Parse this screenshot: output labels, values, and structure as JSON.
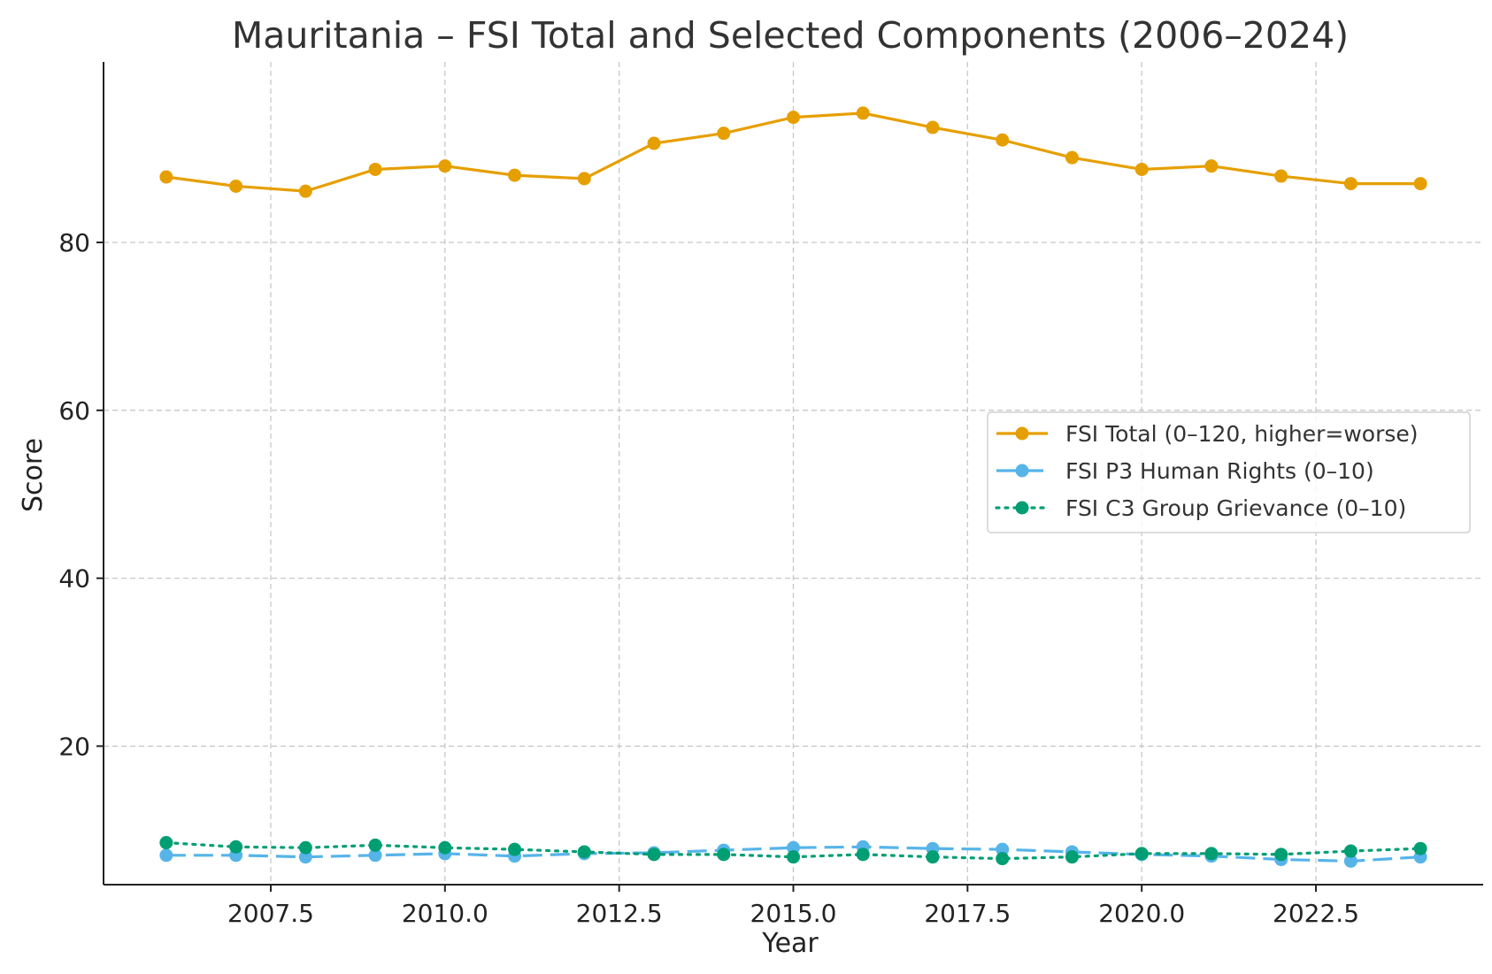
{
  "chart_data": {
    "type": "line",
    "title": "Mauritania – FSI Total and Selected Components (2006–2024)",
    "xlabel": "Year",
    "ylabel": "Score",
    "xlim": [
      2005.1,
      2024.9
    ],
    "ylim": [
      3.5,
      101.5
    ],
    "xticks": [
      2007.5,
      2010.0,
      2012.5,
      2015.0,
      2017.5,
      2020.0,
      2022.5
    ],
    "xtick_labels": [
      "2007.5",
      "2010.0",
      "2012.5",
      "2015.0",
      "2017.5",
      "2020.0",
      "2022.5"
    ],
    "yticks": [
      20,
      40,
      60,
      80
    ],
    "ytick_labels": [
      "20",
      "40",
      "60",
      "80"
    ],
    "grid": true,
    "legend_position": "center-right",
    "x": [
      2006,
      2007,
      2008,
      2009,
      2010,
      2011,
      2012,
      2013,
      2014,
      2015,
      2016,
      2017,
      2018,
      2019,
      2020,
      2021,
      2022,
      2023,
      2024
    ],
    "series": [
      {
        "name": "FSI Total (0–120, higher=worse)",
        "color": "#E69F00",
        "line_style": "solid",
        "values": [
          87.8,
          86.7,
          86.1,
          88.7,
          89.1,
          88.0,
          87.6,
          91.8,
          93.0,
          94.9,
          95.4,
          93.7,
          92.2,
          90.1,
          88.7,
          89.1,
          87.9,
          87.0,
          87.0
        ]
      },
      {
        "name": "FSI P3 Human Rights (0–10)",
        "color": "#56B4E9",
        "line_style": "dashed",
        "values": [
          7.0,
          7.0,
          6.8,
          7.0,
          7.2,
          6.9,
          7.2,
          7.3,
          7.6,
          7.9,
          8.0,
          7.8,
          7.7,
          7.4,
          7.1,
          6.9,
          6.5,
          6.3,
          6.8
        ]
      },
      {
        "name": "FSI C3 Group Grievance (0–10)",
        "color": "#009E73",
        "line_style": "dotted",
        "values": [
          8.5,
          8.0,
          7.9,
          8.2,
          7.9,
          7.7,
          7.4,
          7.1,
          7.1,
          6.8,
          7.1,
          6.8,
          6.6,
          6.8,
          7.2,
          7.2,
          7.1,
          7.5,
          7.8
        ]
      }
    ]
  }
}
